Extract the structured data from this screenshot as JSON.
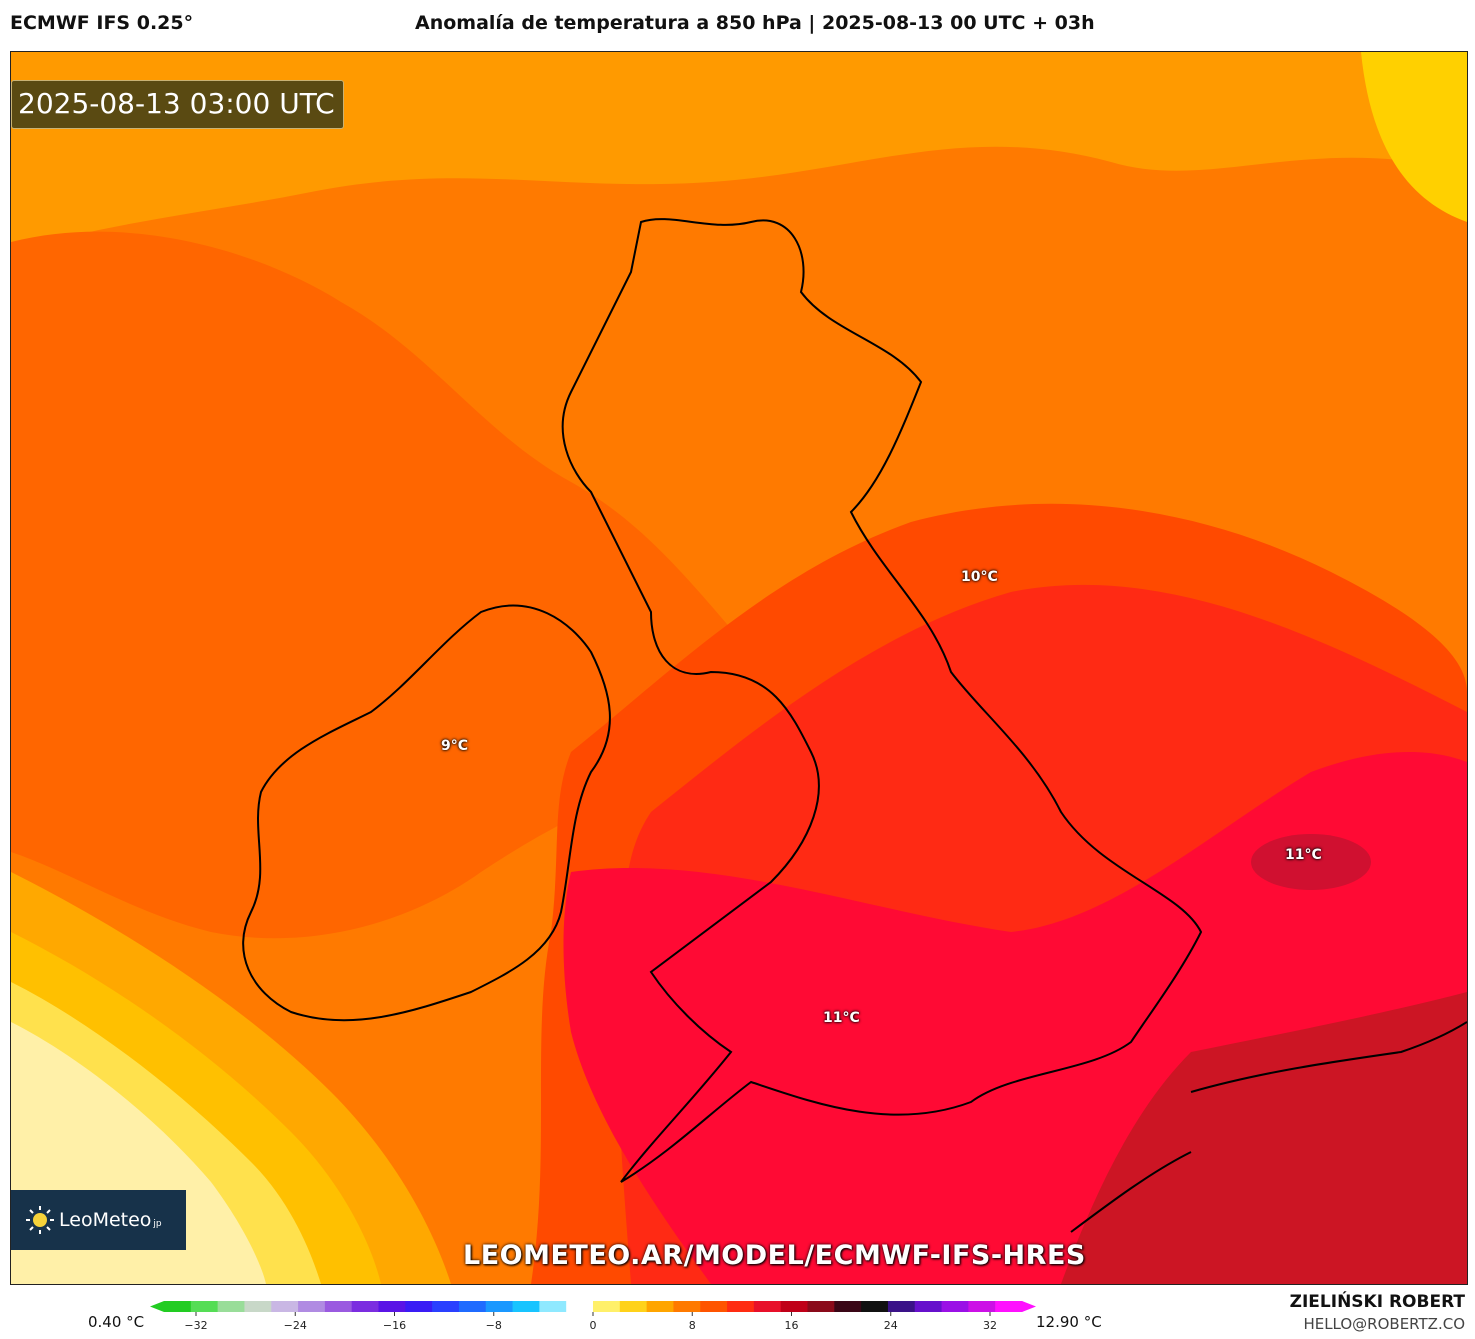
{
  "header": {
    "model": "ECMWF IFS 0.25°",
    "title": "Anomalía de temperatura a 850 hPa | 2025-08-13 00 UTC + 03h"
  },
  "map": {
    "timestamp": "2025-08-13 03:00 UTC",
    "watermark": "LEOMETEO.AR/MODEL/ECMWF-IFS-HRES",
    "labels": [
      {
        "text": "10°C"
      },
      {
        "text": "9°C"
      },
      {
        "text": "11°C"
      },
      {
        "text": "11°C"
      }
    ],
    "logo": {
      "name": "LeoMeteo",
      "suffix": "jp",
      "icon": "sun-icon"
    }
  },
  "colorbar": {
    "min_label": "0.40 °C",
    "max_label": "12.90 °C",
    "ticks": [
      "−32",
      "−24",
      "−16",
      "−8",
      "0",
      "8",
      "16",
      "24",
      "32"
    ],
    "colors": [
      "#22cc22",
      "#55dd55",
      "#99dd99",
      "#c8d8c8",
      "#c9b7e4",
      "#b08be2",
      "#9a5ae0",
      "#7b2de0",
      "#5a14e6",
      "#3a1cf5",
      "#2a40ff",
      "#1f6bff",
      "#1a98ff",
      "#18c4ff",
      "#8fe9ff",
      "#ffffff",
      "#fff06a",
      "#ffd21a",
      "#ffa500",
      "#ff7a00",
      "#ff5400",
      "#ff2c12",
      "#e8102a",
      "#c00018",
      "#8a0a1a",
      "#3a0616",
      "#111111",
      "#3a1288",
      "#6610cc",
      "#9a10e6",
      "#cc10e6",
      "#ff10ff"
    ]
  },
  "footer": {
    "author": "ZIELIŃSKI ROBERT",
    "email": "HELLO@ROBERTZ.CO"
  }
}
